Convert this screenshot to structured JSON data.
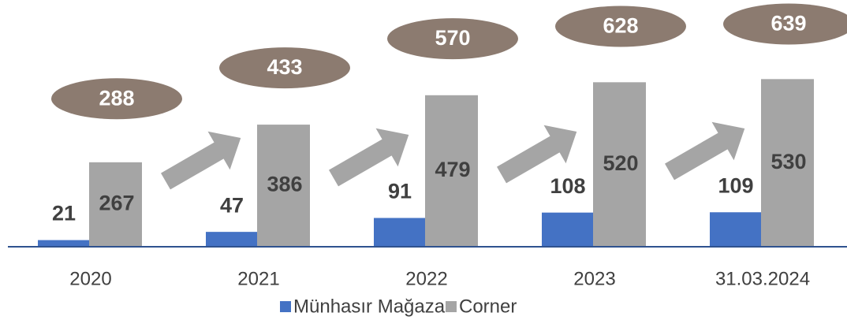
{
  "chart_data": {
    "type": "bar",
    "categories": [
      "2020",
      "2021",
      "2022",
      "2023",
      "31.03.2024"
    ],
    "series": [
      {
        "name": "Münhasır Mağaza",
        "color": "#4472c4",
        "values": [
          21,
          47,
          91,
          108,
          109
        ]
      },
      {
        "name": "Corner",
        "color": "#a5a5a5",
        "values": [
          267,
          386,
          479,
          520,
          530
        ]
      }
    ],
    "totals": [
      288,
      433,
      570,
      628,
      639
    ],
    "ylim": [
      0,
      780
    ]
  }
}
